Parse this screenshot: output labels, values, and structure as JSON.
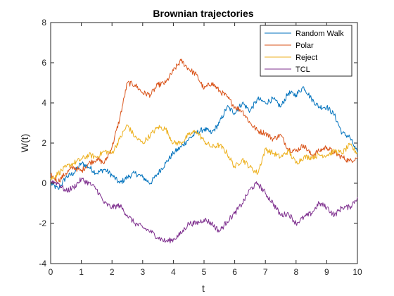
{
  "chart_data": {
    "type": "line",
    "title": "Brownian trajectories",
    "xlabel": "t",
    "ylabel": "W(t)",
    "xlim": [
      0,
      10
    ],
    "ylim": [
      -4,
      8
    ],
    "xticks": [
      0,
      1,
      2,
      3,
      4,
      5,
      6,
      7,
      8,
      9,
      10
    ],
    "yticks": [
      -4,
      -2,
      0,
      2,
      4,
      6,
      8
    ],
    "grid": false,
    "legend_position": "top-right",
    "series": [
      {
        "name": "Random Walk",
        "color": "#0072BD",
        "points": [
          [
            0,
            0
          ],
          [
            0.25,
            -0.3
          ],
          [
            0.5,
            0.3
          ],
          [
            0.75,
            0.5
          ],
          [
            1.0,
            1.0
          ],
          [
            1.25,
            0.8
          ],
          [
            1.5,
            0.5
          ],
          [
            1.75,
            0.7
          ],
          [
            2.0,
            0.4
          ],
          [
            2.25,
            0.0
          ],
          [
            2.5,
            0.3
          ],
          [
            2.75,
            0.5
          ],
          [
            3.0,
            0.3
          ],
          [
            3.25,
            0.0
          ],
          [
            3.5,
            0.5
          ],
          [
            3.75,
            1.0
          ],
          [
            4.0,
            1.5
          ],
          [
            4.25,
            1.8
          ],
          [
            4.5,
            2.2
          ],
          [
            4.75,
            2.5
          ],
          [
            5.0,
            2.7
          ],
          [
            5.25,
            2.5
          ],
          [
            5.5,
            3.0
          ],
          [
            5.75,
            3.8
          ],
          [
            6.0,
            3.5
          ],
          [
            6.25,
            4.0
          ],
          [
            6.5,
            3.6
          ],
          [
            6.75,
            4.2
          ],
          [
            7.0,
            4.0
          ],
          [
            7.25,
            4.2
          ],
          [
            7.5,
            3.8
          ],
          [
            7.75,
            4.5
          ],
          [
            8.0,
            4.4
          ],
          [
            8.25,
            4.8
          ],
          [
            8.5,
            4.2
          ],
          [
            8.75,
            3.8
          ],
          [
            9.0,
            3.8
          ],
          [
            9.25,
            3.4
          ],
          [
            9.5,
            2.5
          ],
          [
            9.75,
            2.3
          ],
          [
            10.0,
            1.5
          ]
        ]
      },
      {
        "name": "Polar",
        "color": "#D95319",
        "points": [
          [
            0,
            0.4
          ],
          [
            0.25,
            0.1
          ],
          [
            0.5,
            0.5
          ],
          [
            0.75,
            0.8
          ],
          [
            1.0,
            0.6
          ],
          [
            1.25,
            1.0
          ],
          [
            1.5,
            1.2
          ],
          [
            1.75,
            1.0
          ],
          [
            2.0,
            1.8
          ],
          [
            2.25,
            3.2
          ],
          [
            2.5,
            5.0
          ],
          [
            2.75,
            4.9
          ],
          [
            3.0,
            4.5
          ],
          [
            3.25,
            4.4
          ],
          [
            3.5,
            4.9
          ],
          [
            3.75,
            5.0
          ],
          [
            4.0,
            5.6
          ],
          [
            4.25,
            6.1
          ],
          [
            4.5,
            5.7
          ],
          [
            4.75,
            5.4
          ],
          [
            5.0,
            4.7
          ],
          [
            5.25,
            5.0
          ],
          [
            5.5,
            4.6
          ],
          [
            5.75,
            4.3
          ],
          [
            6.0,
            3.8
          ],
          [
            6.25,
            3.6
          ],
          [
            6.5,
            3.0
          ],
          [
            6.75,
            2.6
          ],
          [
            7.0,
            2.5
          ],
          [
            7.25,
            2.2
          ],
          [
            7.5,
            2.4
          ],
          [
            7.75,
            1.7
          ],
          [
            8.0,
            1.6
          ],
          [
            8.25,
            1.9
          ],
          [
            8.5,
            1.4
          ],
          [
            8.75,
            1.6
          ],
          [
            9.0,
            1.8
          ],
          [
            9.25,
            1.5
          ],
          [
            9.5,
            1.3
          ],
          [
            9.75,
            1.1
          ],
          [
            10.0,
            1.3
          ]
        ]
      },
      {
        "name": "Reject",
        "color": "#EDB120",
        "points": [
          [
            0,
            0.2
          ],
          [
            0.25,
            0.5
          ],
          [
            0.5,
            0.8
          ],
          [
            0.75,
            1.0
          ],
          [
            1.0,
            1.2
          ],
          [
            1.25,
            1.4
          ],
          [
            1.5,
            1.3
          ],
          [
            1.75,
            1.6
          ],
          [
            2.0,
            1.5
          ],
          [
            2.25,
            2.2
          ],
          [
            2.5,
            2.9
          ],
          [
            2.75,
            2.3
          ],
          [
            3.0,
            2.0
          ],
          [
            3.25,
            2.4
          ],
          [
            3.5,
            2.8
          ],
          [
            3.75,
            2.7
          ],
          [
            4.0,
            2.0
          ],
          [
            4.25,
            2.0
          ],
          [
            4.5,
            2.4
          ],
          [
            4.75,
            2.6
          ],
          [
            5.0,
            2.1
          ],
          [
            5.25,
            1.8
          ],
          [
            5.5,
            1.9
          ],
          [
            5.75,
            1.5
          ],
          [
            6.0,
            0.8
          ],
          [
            6.25,
            1.2
          ],
          [
            6.5,
            0.8
          ],
          [
            6.75,
            0.5
          ],
          [
            7.0,
            1.7
          ],
          [
            7.25,
            1.5
          ],
          [
            7.5,
            1.3
          ],
          [
            7.75,
            1.6
          ],
          [
            8.0,
            1.0
          ],
          [
            8.25,
            1.3
          ],
          [
            8.5,
            1.3
          ],
          [
            8.75,
            1.4
          ],
          [
            9.0,
            1.4
          ],
          [
            9.25,
            1.6
          ],
          [
            9.5,
            1.5
          ],
          [
            9.75,
            1.9
          ],
          [
            10.0,
            1.5
          ]
        ]
      },
      {
        "name": "TCL",
        "color": "#7E2F8E",
        "points": [
          [
            0,
            0.1
          ],
          [
            0.25,
            0.0
          ],
          [
            0.5,
            -0.4
          ],
          [
            0.75,
            -0.2
          ],
          [
            1.0,
            0.2
          ],
          [
            1.25,
            0.0
          ],
          [
            1.5,
            -0.3
          ],
          [
            1.75,
            -1.0
          ],
          [
            2.0,
            -1.2
          ],
          [
            2.25,
            -1.1
          ],
          [
            2.5,
            -1.6
          ],
          [
            2.75,
            -2.0
          ],
          [
            3.0,
            -2.2
          ],
          [
            3.25,
            -2.4
          ],
          [
            3.5,
            -2.7
          ],
          [
            3.75,
            -2.9
          ],
          [
            4.0,
            -2.8
          ],
          [
            4.25,
            -2.5
          ],
          [
            4.5,
            -2.0
          ],
          [
            4.75,
            -2.0
          ],
          [
            5.0,
            -1.8
          ],
          [
            5.25,
            -2.0
          ],
          [
            5.5,
            -2.4
          ],
          [
            5.75,
            -1.9
          ],
          [
            6.0,
            -1.5
          ],
          [
            6.25,
            -1.0
          ],
          [
            6.5,
            -0.3
          ],
          [
            6.75,
            0.0
          ],
          [
            7.0,
            -0.5
          ],
          [
            7.25,
            -1.0
          ],
          [
            7.5,
            -1.6
          ],
          [
            7.75,
            -1.5
          ],
          [
            8.0,
            -2.0
          ],
          [
            8.25,
            -1.7
          ],
          [
            8.5,
            -1.5
          ],
          [
            8.75,
            -1.0
          ],
          [
            9.0,
            -1.2
          ],
          [
            9.25,
            -1.6
          ],
          [
            9.5,
            -1.2
          ],
          [
            9.75,
            -1.2
          ],
          [
            10.0,
            -0.7
          ]
        ]
      }
    ]
  }
}
